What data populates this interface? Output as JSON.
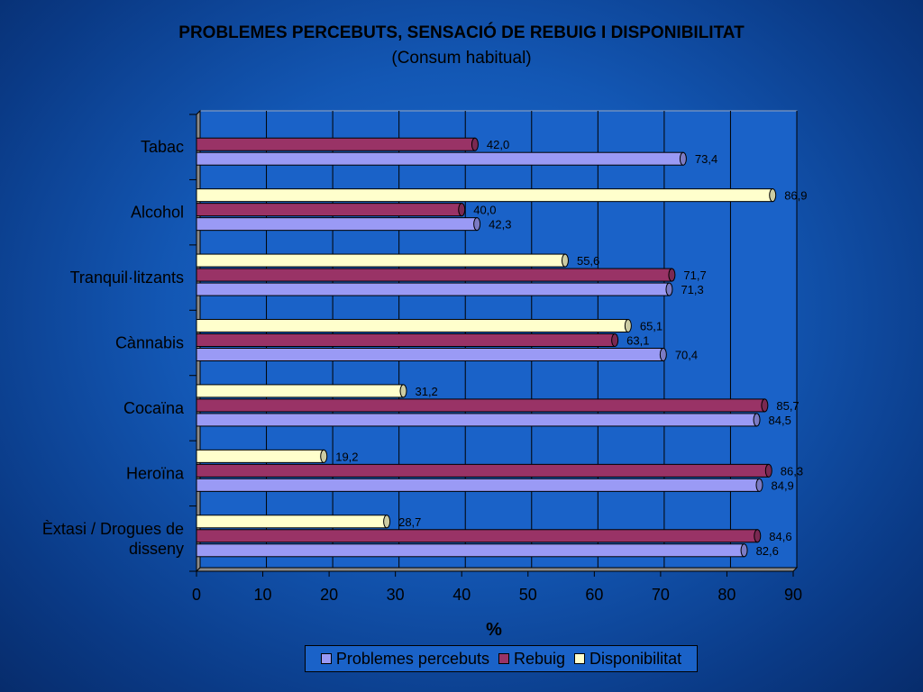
{
  "chart_data": {
    "type": "bar",
    "orientation": "horizontal",
    "title": "PROBLEMES PERCEBUTS, SENSACIÓ DE REBUIG I DISPONIBILITAT",
    "subtitle": "(Consum habitual)",
    "xlabel": "%",
    "ylabel": "",
    "xlim": [
      0,
      90
    ],
    "xticks": [
      0,
      10,
      20,
      30,
      40,
      50,
      60,
      70,
      80,
      90
    ],
    "grid": true,
    "legend_position": "bottom",
    "categories": [
      "Tabac",
      "Alcohol",
      "Tranquil·litzants",
      "Cànnabis",
      "Cocaïna",
      "Heroïna",
      "Èxtasi / Drogues de disseny"
    ],
    "category_lines": [
      [
        "Tabac"
      ],
      [
        "Alcohol"
      ],
      [
        "Tranquil·litzants"
      ],
      [
        "Cànnabis"
      ],
      [
        "Cocaïna"
      ],
      [
        "Heroïna"
      ],
      [
        "Èxtasi / Drogues de",
        "disseny"
      ]
    ],
    "series": [
      {
        "name": "Problemes percebuts",
        "color": "#9a9af5",
        "values": [
          73.4,
          42.3,
          71.3,
          70.4,
          84.5,
          84.9,
          82.6
        ],
        "labels": [
          "73,4",
          "42,3",
          "71,3",
          "70,4",
          "84,5",
          "84,9",
          "82,6"
        ]
      },
      {
        "name": "Rebuig",
        "color": "#993366",
        "values": [
          42.0,
          40.0,
          71.7,
          63.1,
          85.7,
          86.3,
          84.6
        ],
        "labels": [
          "42,0",
          "40,0",
          "71,7",
          "63,1",
          "85,7",
          "86,3",
          "84,6"
        ]
      },
      {
        "name": "Disponibilitat",
        "color": "#ffffcc",
        "values": [
          null,
          86.9,
          55.6,
          65.1,
          31.2,
          19.2,
          28.7
        ],
        "labels": [
          null,
          "86,9",
          "55,6",
          "65,1",
          "31,2",
          "19,2",
          "28,7"
        ]
      }
    ]
  }
}
